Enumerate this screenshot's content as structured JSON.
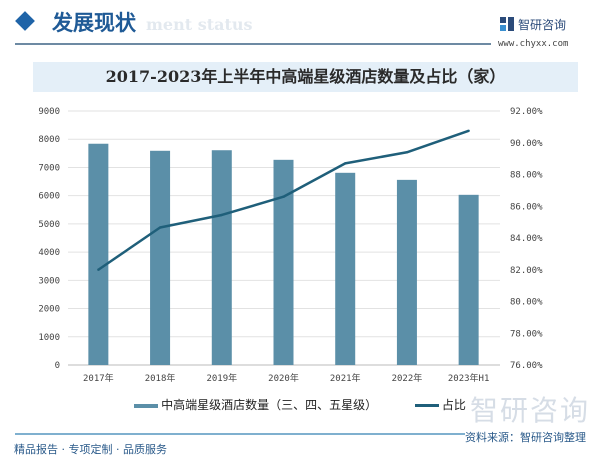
{
  "header": {
    "title": "发展现状",
    "subtitle": "ment status",
    "logo_name": "智研咨询",
    "logo_url": "www.chyxx.com"
  },
  "colors": {
    "bar": "#5b8fa8",
    "line": "#1f5f7a",
    "accent": "#1f5a96"
  },
  "chart_data": {
    "type": "bar+line",
    "title": "2017-2023年上半年中高端星级酒店数量及占比（家）",
    "categories": [
      "2017年",
      "2018年",
      "2019年",
      "2020年",
      "2021年",
      "2022年",
      "2023年H1"
    ],
    "series": [
      {
        "name": "中高端星级酒店数量（三、四、五星级）",
        "type": "bar",
        "axis": "left",
        "values": [
          7840,
          7590,
          7610,
          7270,
          6810,
          6560,
          6030
        ]
      },
      {
        "name": "占比",
        "type": "line",
        "axis": "right",
        "values": [
          82.0,
          84.66,
          85.45,
          86.6,
          88.7,
          89.4,
          90.75
        ]
      }
    ],
    "y_left": {
      "range": [
        0,
        9000
      ],
      "ticks": [
        "0",
        "1000",
        "2000",
        "3000",
        "4000",
        "5000",
        "6000",
        "7000",
        "8000",
        "9000"
      ]
    },
    "y_right": {
      "range": [
        76,
        92
      ],
      "ticks": [
        "76.00%",
        "78.00%",
        "80.00%",
        "82.00%",
        "84.00%",
        "86.00%",
        "88.00%",
        "90.00%",
        "92.00%"
      ]
    },
    "grid": true,
    "legend": "bottom"
  },
  "watermark": "智研咨询",
  "footer": {
    "left": "精品报告 · 专项定制 · 品质服务",
    "source": "资料来源：智研咨询整理"
  }
}
